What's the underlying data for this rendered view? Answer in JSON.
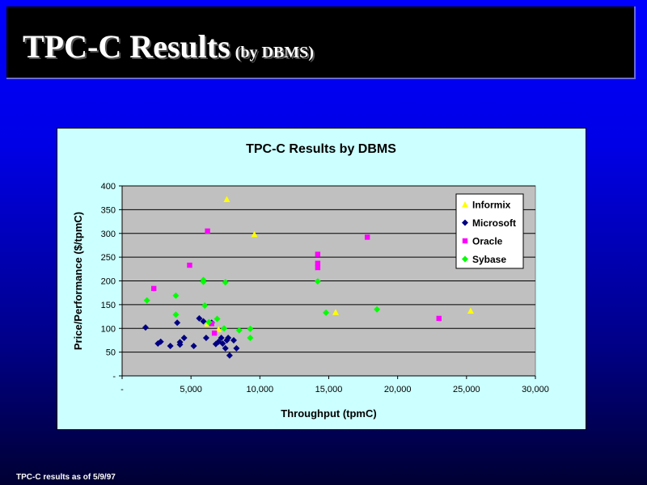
{
  "slide": {
    "title": "TPC-C Results",
    "subtitle": "(by DBMS)",
    "footer": "TPC-C results as of 5/9/97"
  },
  "chart_data": {
    "type": "scatter",
    "title": "TPC-C Results by DBMS",
    "xlabel": "Throughput (tpmC)",
    "ylabel": "Price/Performance ($/tpmC)",
    "xlim": [
      0,
      30000
    ],
    "ylim": [
      0,
      400
    ],
    "x_ticks": [
      0,
      5000,
      10000,
      15000,
      20000,
      25000,
      30000
    ],
    "x_tick_labels": [
      "-",
      "5,000",
      "10,000",
      "15,000",
      "20,000",
      "25,000",
      "30,000"
    ],
    "y_ticks": [
      0,
      50,
      100,
      150,
      200,
      250,
      300,
      350,
      400
    ],
    "y_tick_labels": [
      "-",
      "50",
      "100",
      "150",
      "200",
      "250",
      "300",
      "350",
      "400"
    ],
    "grid": "horizontal",
    "legend_position": "top-right",
    "series": [
      {
        "name": "Informix",
        "marker": "triangle",
        "color": "#ffff00",
        "points": [
          [
            7600,
            372
          ],
          [
            9600,
            298
          ],
          [
            6200,
            110
          ],
          [
            7000,
            98
          ],
          [
            15500,
            134
          ],
          [
            25300,
            137
          ]
        ]
      },
      {
        "name": "Microsoft",
        "marker": "diamond",
        "color": "#000080",
        "points": [
          [
            1700,
            102
          ],
          [
            2600,
            68
          ],
          [
            2800,
            72
          ],
          [
            3500,
            63
          ],
          [
            4000,
            112
          ],
          [
            4200,
            66
          ],
          [
            4200,
            71
          ],
          [
            4500,
            80
          ],
          [
            5200,
            63
          ],
          [
            5600,
            121
          ],
          [
            5900,
            115
          ],
          [
            6100,
            80
          ],
          [
            6500,
            112
          ],
          [
            6800,
            67
          ],
          [
            7000,
            72
          ],
          [
            7200,
            80
          ],
          [
            7300,
            68
          ],
          [
            7500,
            58
          ],
          [
            7600,
            75
          ],
          [
            7700,
            80
          ],
          [
            7800,
            43
          ],
          [
            8100,
            75
          ],
          [
            8300,
            58
          ]
        ]
      },
      {
        "name": "Oracle",
        "marker": "square",
        "color": "#ff00ff",
        "points": [
          [
            2300,
            184
          ],
          [
            4900,
            233
          ],
          [
            6200,
            305
          ],
          [
            6500,
            110
          ],
          [
            6700,
            90
          ],
          [
            14200,
            256
          ],
          [
            14200,
            237
          ],
          [
            14200,
            228
          ],
          [
            17800,
            292
          ],
          [
            23000,
            121
          ]
        ]
      },
      {
        "name": "Sybase",
        "marker": "diamond",
        "color": "#00ff00",
        "points": [
          [
            1800,
            159
          ],
          [
            3900,
            169
          ],
          [
            3900,
            129
          ],
          [
            5900,
            202
          ],
          [
            5900,
            198
          ],
          [
            6000,
            148
          ],
          [
            6300,
            113
          ],
          [
            6900,
            120
          ],
          [
            7500,
            197
          ],
          [
            7400,
            100
          ],
          [
            8500,
            96
          ],
          [
            9300,
            99
          ],
          [
            9300,
            80
          ],
          [
            14200,
            199
          ],
          [
            14800,
            133
          ],
          [
            18500,
            140
          ]
        ]
      }
    ]
  }
}
